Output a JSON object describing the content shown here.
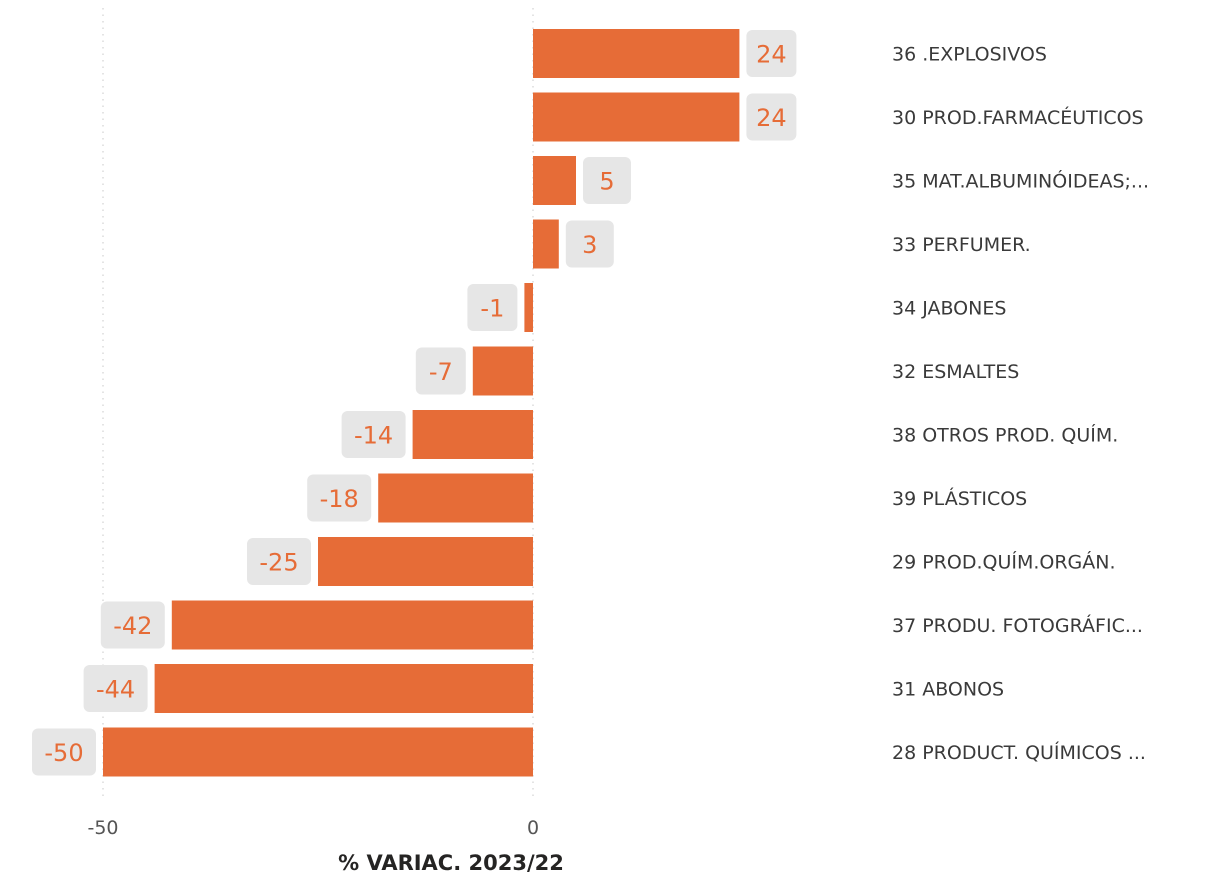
{
  "chart_data": {
    "type": "bar",
    "orientation": "horizontal",
    "categories": [
      "36 .EXPLOSIVOS",
      "30 PROD.FARMACÉUTICOS",
      "35 MAT.ALBUMINÓIDEAS;...",
      "33 PERFUMER.",
      "34 JABONES",
      "32 ESMALTES",
      "38 OTROS PROD. QUÍM.",
      "39 PLÁSTICOS",
      "29 PROD.QUÍM.ORGÁN.",
      "37 PRODU. FOTOGRÁFIC...",
      "31 ABONOS",
      "28 PRODUCT. QUÍMICOS ..."
    ],
    "values": [
      24,
      24,
      5,
      3,
      -1,
      -7,
      -14,
      -18,
      -25,
      -42,
      -44,
      -50
    ],
    "xlabel": "% VARIAC. 2023/22",
    "xlim": [
      -50,
      24
    ],
    "ticks": [
      -50,
      0
    ],
    "tick_labels": [
      "-50",
      "0"
    ],
    "grid": "vertical dotted at ticks",
    "colors": {
      "bar": "#E66C37",
      "label_bg": "#E6E6E6",
      "label_text": "#E66C37"
    }
  }
}
